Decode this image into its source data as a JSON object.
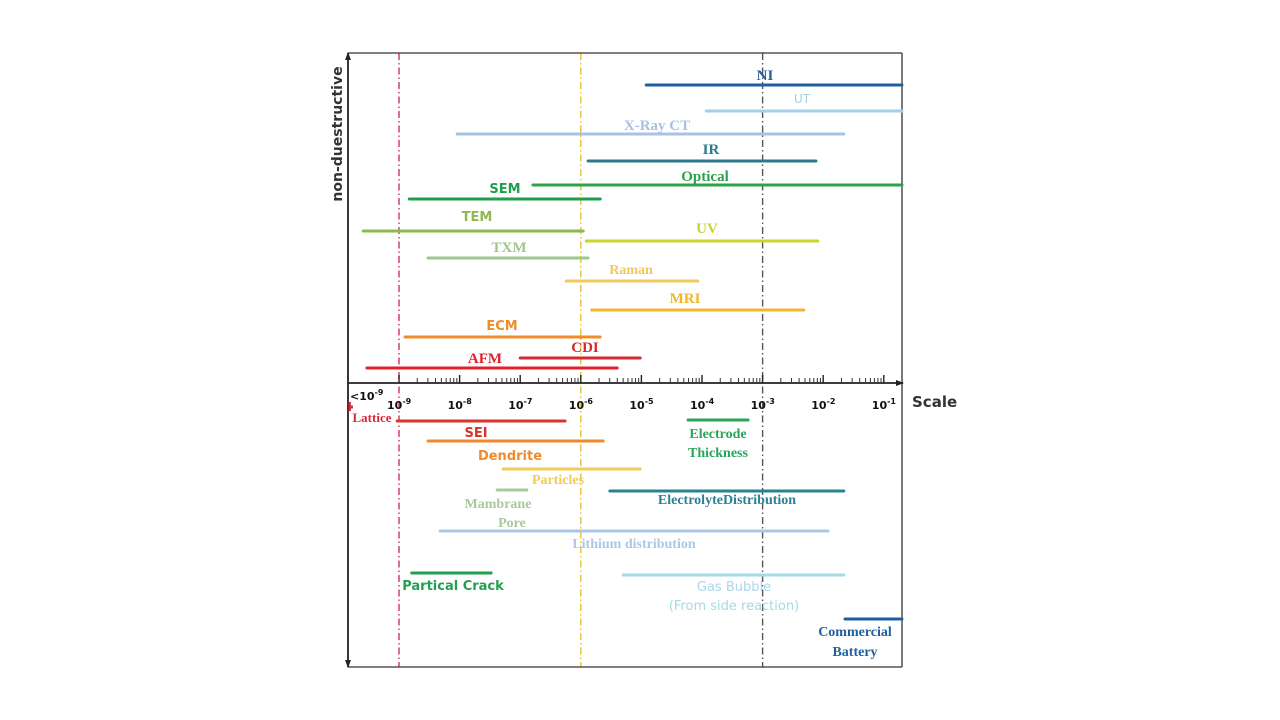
{
  "chart_data": {
    "type": "bar",
    "variant": "horizontal-range (log scale)",
    "title": "",
    "xlabel": "Scale",
    "ylabel": "non-duestructive",
    "x_scale": "log10 (meters)",
    "xlim_log10": [
      -9.84,
      -0.7
    ],
    "grid": false,
    "x_ticks": [
      {
        "label_base": "<10",
        "label_exp": "-9",
        "log10": -9.6
      },
      {
        "label_base": "10",
        "label_exp": "-9",
        "log10": -9
      },
      {
        "label_base": "10",
        "label_exp": "-8",
        "log10": -8
      },
      {
        "label_base": "10",
        "label_exp": "-7",
        "log10": -7
      },
      {
        "label_base": "10",
        "label_exp": "-6",
        "log10": -6
      },
      {
        "label_base": "10",
        "label_exp": "-5",
        "log10": -5
      },
      {
        "label_base": "10",
        "label_exp": "-4",
        "log10": -4
      },
      {
        "label_base": "10",
        "label_exp": "-3",
        "log10": -3
      },
      {
        "label_base": "10",
        "label_exp": "-2",
        "log10": -2
      },
      {
        "label_base": "10",
        "label_exp": "-1",
        "log10": -1
      }
    ],
    "reference_lines": [
      {
        "log10": -9,
        "color": "#d0345a",
        "style": "dash-dot"
      },
      {
        "log10": -6,
        "color": "#e6c22e",
        "style": "dash-dot"
      },
      {
        "log10": -3,
        "color": "#555555",
        "style": "dash-dot"
      }
    ],
    "techniques": [
      {
        "name": "NI",
        "label": [
          "NI"
        ],
        "range_log10": [
          -4.92,
          -0.7
        ],
        "color": "#1f5f9f"
      },
      {
        "name": "UT",
        "label": [
          "UT"
        ],
        "range_log10": [
          -3.93,
          -0.7
        ],
        "color": "#a3d0e4"
      },
      {
        "name": "X-Ray CT",
        "label": [
          "X-Ray CT"
        ],
        "range_log10": [
          -8.04,
          -1.66
        ],
        "color": "#a7c3e3"
      },
      {
        "name": "IR",
        "label": [
          "IR"
        ],
        "range_log10": [
          -5.88,
          -2.12
        ],
        "color": "#2a7a8c"
      },
      {
        "name": "Optical",
        "label": [
          "Optical"
        ],
        "range_log10": [
          -6.79,
          -0.7
        ],
        "color": "#2ca34a"
      },
      {
        "name": "SEM",
        "label": [
          "SEM"
        ],
        "range_log10": [
          -8.83,
          -5.68
        ],
        "color": "#1f9e4c"
      },
      {
        "name": "TEM",
        "label": [
          "TEM"
        ],
        "range_log10": [
          -9.59,
          -5.96
        ],
        "color": "#8cba4e"
      },
      {
        "name": "UV",
        "label": [
          "UV"
        ],
        "range_log10": [
          -5.91,
          -2.09
        ],
        "color": "#c6d530"
      },
      {
        "name": "TXM",
        "label": [
          "TXM"
        ],
        "range_log10": [
          -8.52,
          -5.88
        ],
        "color": "#9dc78c"
      },
      {
        "name": "Raman",
        "label": [
          "Raman"
        ],
        "range_log10": [
          -6.24,
          -4.07
        ],
        "color": "#f0c85c"
      },
      {
        "name": "MRI",
        "label": [
          "MRI"
        ],
        "range_log10": [
          -5.82,
          -2.32
        ],
        "color": "#f2b62c"
      },
      {
        "name": "ECM",
        "label": [
          "ECM"
        ],
        "range_log10": [
          -8.9,
          -5.68
        ],
        "color": "#f08c2a"
      },
      {
        "name": "CDI",
        "label": [
          "CDI"
        ],
        "range_log10": [
          -7.0,
          -5.02
        ],
        "color": "#d22a2e"
      },
      {
        "name": "AFM",
        "label": [
          "AFM"
        ],
        "range_log10": [
          -9.53,
          -5.4
        ],
        "color": "#e0202c"
      }
    ],
    "features": [
      {
        "name": "Lattice",
        "label": [
          "Lattice"
        ],
        "range_log10": [
          -9.83,
          -9.76
        ],
        "color": "#d8283a"
      },
      {
        "name": "SEI",
        "label": [
          "SEI"
        ],
        "range_log10": [
          -9.03,
          -6.26
        ],
        "color": "#d9342b"
      },
      {
        "name": "Dendrite",
        "label": [
          "Dendrite"
        ],
        "range_log10": [
          -8.52,
          -5.63
        ],
        "color": "#f08a2c"
      },
      {
        "name": "Particles",
        "label": [
          "Particles"
        ],
        "range_log10": [
          -7.28,
          -5.02
        ],
        "color": "#f0cb56"
      },
      {
        "name": "Mambrane Pore",
        "label": [
          "Mambrane",
          "Pore"
        ],
        "range_log10": [
          -7.38,
          -6.89
        ],
        "color": "#a9c99b"
      },
      {
        "name": "Electrode Thickness",
        "label": [
          "Electrode",
          "Thickness"
        ],
        "range_log10": [
          -4.23,
          -3.24
        ],
        "color": "#2aa45c"
      },
      {
        "name": "ElectrolyteDistribution",
        "label": [
          "ElectrolyteDistribution"
        ],
        "range_log10": [
          -5.52,
          -1.66
        ],
        "color": "#2a8191"
      },
      {
        "name": "Lithium distribution",
        "label": [
          "Lithium distribution"
        ],
        "range_log10": [
          -8.32,
          -1.92
        ],
        "color": "#a9c8e8"
      },
      {
        "name": "Gas Bubble (From side reaction)",
        "label": [
          "Gas Bubble",
          "(From side reaction)"
        ],
        "range_log10": [
          -5.3,
          -1.66
        ],
        "color": "#a6d8e8"
      },
      {
        "name": "Partical Crack",
        "label": [
          "Partical Crack"
        ],
        "range_log10": [
          -8.79,
          -7.48
        ],
        "color": "#22a052"
      },
      {
        "name": "Commercial Battery",
        "label": [
          "Commercial",
          "Battery"
        ],
        "range_log10": [
          -1.64,
          -0.7
        ],
        "color": "#1f5f9f"
      }
    ]
  }
}
